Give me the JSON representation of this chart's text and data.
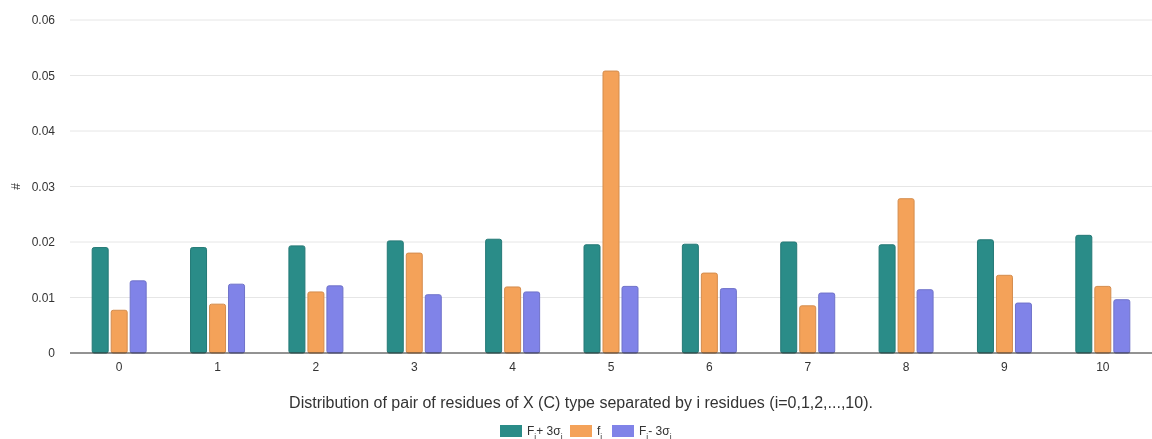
{
  "chart_data": {
    "type": "bar",
    "xlabel": "Distribution of pair of residues of X (C) type separated by i residues (i=0,1,2,...,10).",
    "ylabel": "#",
    "categories": [
      "0",
      "1",
      "2",
      "3",
      "4",
      "5",
      "6",
      "7",
      "8",
      "9",
      "10"
    ],
    "series": [
      {
        "name": "F$_{i}$+ 3σ$_{i}$",
        "color": "#2a8c88",
        "values": [
          0.019,
          0.019,
          0.0193,
          0.0202,
          0.0205,
          0.0195,
          0.0196,
          0.02,
          0.0195,
          0.0204,
          0.0212
        ]
      },
      {
        "name": "f$_{i}$",
        "color": "#f4a259",
        "values": [
          0.0077,
          0.0088,
          0.011,
          0.018,
          0.0119,
          0.0508,
          0.0144,
          0.0085,
          0.0278,
          0.014,
          0.012
        ]
      },
      {
        "name": "F$_{i}$- 3σ$_{i}$",
        "color": "#8083e8",
        "values": [
          0.013,
          0.0124,
          0.0121,
          0.0105,
          0.011,
          0.012,
          0.0116,
          0.0108,
          0.0114,
          0.009,
          0.0096
        ]
      }
    ],
    "ylim": [
      0,
      0.06
    ],
    "yticks": [
      0,
      0.01,
      0.02,
      0.03,
      0.04,
      0.05,
      0.06
    ],
    "grid": "y",
    "legend": "bottom"
  }
}
